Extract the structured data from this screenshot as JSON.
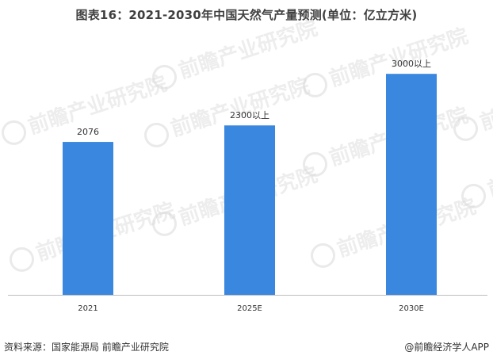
{
  "title": "图表16：2021-2030年中国天然气产量预测(单位：亿立方米)",
  "footer": {
    "source": "资料来源：国家能源局 前瞻产业研究院",
    "brand": "@前瞻经济学人APP"
  },
  "watermark": {
    "text": "前瞻产业研究院"
  },
  "colors": {
    "bar": "#3a87e0",
    "axis": "#bfbfbf",
    "watermark": "#d9d9d9"
  },
  "chart_data": {
    "type": "bar",
    "title": "图表16：2021-2030年中国天然气产量预测(单位：亿立方米)",
    "categories": [
      "2021",
      "2025E",
      "2030E"
    ],
    "values": [
      2076,
      2300,
      3000
    ],
    "data_labels": [
      "2076",
      "2300以上",
      "3000以上"
    ],
    "xlabel": "",
    "ylabel": "",
    "ylim": [
      0,
      3400
    ],
    "grid": false,
    "legend": "none"
  }
}
